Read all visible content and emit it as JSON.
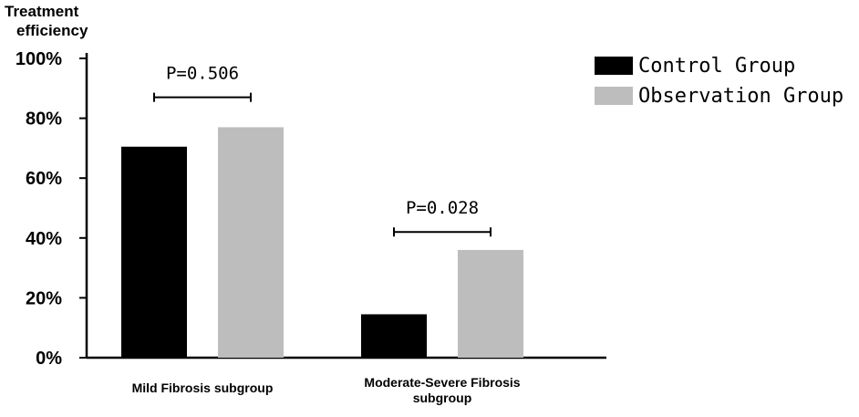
{
  "chart_data": {
    "type": "bar",
    "ylabel": "Treatment efficiency",
    "ylim": [
      0,
      100
    ],
    "yticks": [
      "0%",
      "20%",
      "40%",
      "60%",
      "80%",
      "100%"
    ],
    "categories": [
      "Mild Fibrosis subgroup",
      "Moderate-Severe Fibrosis subgroup"
    ],
    "series": [
      {
        "name": "Control Group",
        "values": [
          70.5,
          14.5
        ],
        "color": "#000000"
      },
      {
        "name": "Observation Group",
        "values": [
          77,
          36
        ],
        "color": "#bdbdbd"
      }
    ],
    "annotations": [
      {
        "category": "Mild Fibrosis subgroup",
        "text": "P=0.506",
        "bracket_y": 87
      },
      {
        "category": "Moderate-Severe Fibrosis subgroup",
        "text": "P=0.028",
        "bracket_y": 42
      }
    ],
    "legend_position": "top-right",
    "grid": false
  }
}
